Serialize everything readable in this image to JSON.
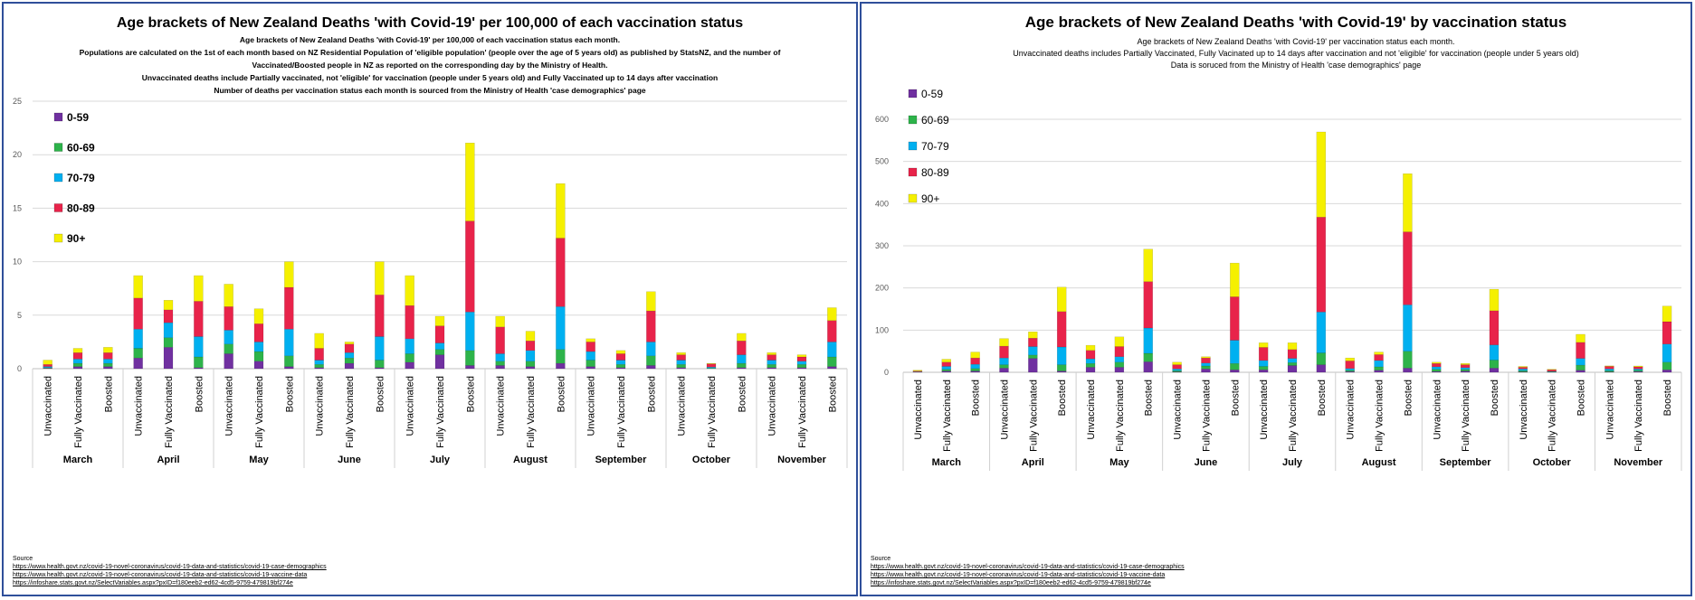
{
  "legend": {
    "labels": [
      "0-59",
      "60-69",
      "70-79",
      "80-89",
      "90+"
    ]
  },
  "colors": {
    "0-59": "#7030a0",
    "60-69": "#2db34a",
    "70-79": "#00b0f0",
    "80-89": "#e8234a",
    "90+": "#f5f000",
    "grid": "#d9d9d9",
    "border": "#2f4f9a"
  },
  "source": {
    "label": "Source",
    "links": [
      "https://www.health.govt.nz/covid-19-novel-coronavirus/covid-19-data-and-statistics/covid-19-case-demographics",
      "https://www.health.govt.nz/covid-19-novel-coronavirus/covid-19-data-and-statistics/covid-19-vaccine-data",
      "https://infoshare.stats.govt.nz/SelectVariables.aspx?pxID=f180eeb2-ed62-4cd5-9759-479819bf274e"
    ]
  },
  "chart_data": [
    {
      "type": "bar",
      "stacked": true,
      "title": "Age brackets of New Zealand Deaths 'with Covid-19' per 100,000 of each vaccination status",
      "subtitle_lines": [
        "Age brackets of New Zealand Deaths 'with Covid-19' per 100,000 of each vaccination status each month.",
        "Populations are calculated on the 1st of each month based on NZ Residential Population of 'eligible population' (people over the age of 5 years old) as published by StatsNZ, and the number of",
        "Vaccinated/Boosted people in NZ as reported on the corresponding day by the Ministry of Health.",
        "Unvaccinated deaths include Partially vaccinated, not 'eligible' for vaccination (people under 5 years old) and Fully Vaccinated up to 14 days after vaccination",
        "Number of deaths per vaccination status each month is sourced from the Ministry of Health 'case demographics' page"
      ],
      "ylim": [
        0,
        25
      ],
      "yticks": [
        0,
        5,
        10,
        15,
        20,
        25
      ],
      "months": [
        "March",
        "April",
        "May",
        "June",
        "July",
        "August",
        "September",
        "October",
        "November"
      ],
      "statuses": [
        "Unvaccinated",
        "Fully Vaccinated",
        "Boosted"
      ],
      "series_names": [
        "0-59",
        "60-69",
        "70-79",
        "80-89",
        "90+"
      ],
      "stacks": [
        [
          [
            0.05,
            0.05,
            0.1,
            0.2,
            0.4
          ],
          [
            0.2,
            0.3,
            0.4,
            0.6,
            0.4
          ],
          [
            0.2,
            0.3,
            0.4,
            0.6,
            0.5
          ]
        ],
        [
          [
            1.0,
            0.9,
            1.8,
            2.9,
            2.1
          ],
          [
            2.0,
            0.9,
            1.4,
            1.2,
            0.9
          ],
          [
            0.1,
            1.0,
            1.9,
            3.3,
            2.4
          ]
        ],
        [
          [
            1.4,
            0.9,
            1.3,
            2.2,
            2.1
          ],
          [
            0.7,
            0.9,
            0.9,
            1.7,
            1.4
          ],
          [
            0.2,
            1.0,
            2.5,
            3.9,
            2.4
          ]
        ],
        [
          [
            0.1,
            0.3,
            0.4,
            1.1,
            1.4
          ],
          [
            0.5,
            0.5,
            0.5,
            0.8,
            0.2
          ],
          [
            0.1,
            0.7,
            2.2,
            3.9,
            3.1
          ]
        ],
        [
          [
            0.6,
            0.8,
            1.4,
            3.1,
            2.8
          ],
          [
            1.3,
            0.5,
            0.6,
            1.6,
            0.9
          ],
          [
            0.3,
            1.4,
            3.6,
            8.5,
            7.3
          ]
        ],
        [
          [
            0.3,
            0.4,
            0.7,
            2.5,
            1.0
          ],
          [
            0.2,
            0.5,
            1.0,
            0.9,
            0.9
          ],
          [
            0.5,
            1.3,
            4.0,
            6.4,
            5.1
          ]
        ],
        [
          [
            0.2,
            0.6,
            0.8,
            0.9,
            0.3
          ],
          [
            0.1,
            0.3,
            0.4,
            0.6,
            0.3
          ],
          [
            0.3,
            0.9,
            1.3,
            2.9,
            1.8
          ]
        ],
        [
          [
            0.1,
            0.3,
            0.4,
            0.5,
            0.2
          ],
          [
            0.0,
            0.05,
            0.1,
            0.3,
            0.05
          ],
          [
            0.1,
            0.4,
            0.8,
            1.3,
            0.7
          ]
        ],
        [
          [
            0.1,
            0.3,
            0.4,
            0.5,
            0.2
          ],
          [
            0.1,
            0.3,
            0.3,
            0.4,
            0.2
          ],
          [
            0.2,
            0.9,
            1.4,
            2.0,
            1.2
          ]
        ]
      ]
    },
    {
      "type": "bar",
      "stacked": true,
      "title": "Age brackets of New Zealand Deaths 'with Covid-19' by vaccination status",
      "subtitle_lines": [
        "Age brackets of New Zealand Deaths 'with Covid-19' per vaccination status each month.",
        "Unvaccinated deaths includes Partially Vaccinated, Fully Vacinated up to 14 days after vaccination and not 'eligible' for vaccination (people under 5 years old)",
        "Data is soruced from the Ministry of Health 'case demographics' page"
      ],
      "ylim": [
        0,
        600
      ],
      "yticks": [
        0,
        100,
        200,
        300,
        400,
        500,
        600
      ],
      "months": [
        "March",
        "April",
        "May",
        "June",
        "July",
        "August",
        "September",
        "October",
        "November"
      ],
      "statuses": [
        "Unvaccinated",
        "Fully Vaccinated",
        "Boosted"
      ],
      "series_names": [
        "0-59",
        "60-69",
        "70-79",
        "80-89",
        "90+"
      ],
      "stacks": [
        [
          [
            0,
            0,
            1,
            2,
            2
          ],
          [
            3,
            4,
            7,
            10,
            7
          ],
          [
            3,
            6,
            10,
            15,
            14
          ]
        ],
        [
          [
            10,
            8,
            16,
            28,
            18
          ],
          [
            33,
            8,
            20,
            20,
            15
          ],
          [
            3,
            15,
            42,
            84,
            58
          ]
        ],
        [
          [
            12,
            9,
            11,
            20,
            12
          ],
          [
            12,
            12,
            13,
            24,
            23
          ],
          [
            25,
            20,
            60,
            110,
            77
          ]
        ],
        [
          [
            1,
            3,
            4,
            10,
            6
          ],
          [
            8,
            7,
            7,
            12,
            3
          ],
          [
            6,
            15,
            55,
            103,
            80
          ]
        ],
        [
          [
            6,
            8,
            14,
            31,
            11
          ],
          [
            16,
            7,
            10,
            21,
            16
          ],
          [
            18,
            28,
            97,
            225,
            202
          ]
        ],
        [
          [
            2,
            3,
            4,
            18,
            7
          ],
          [
            5,
            8,
            15,
            14,
            6
          ],
          [
            10,
            40,
            110,
            173,
            138
          ]
        ],
        [
          [
            2,
            5,
            6,
            8,
            3
          ],
          [
            3,
            4,
            4,
            7,
            3
          ],
          [
            10,
            19,
            36,
            81,
            51
          ]
        ],
        [
          [
            1,
            3,
            4,
            4,
            2
          ],
          [
            0,
            1,
            1,
            4,
            1
          ],
          [
            5,
            12,
            16,
            38,
            19
          ]
        ],
        [
          [
            1,
            3,
            4,
            6,
            1
          ],
          [
            2,
            3,
            3,
            5,
            2
          ],
          [
            6,
            18,
            43,
            53,
            37
          ]
        ]
      ]
    }
  ]
}
